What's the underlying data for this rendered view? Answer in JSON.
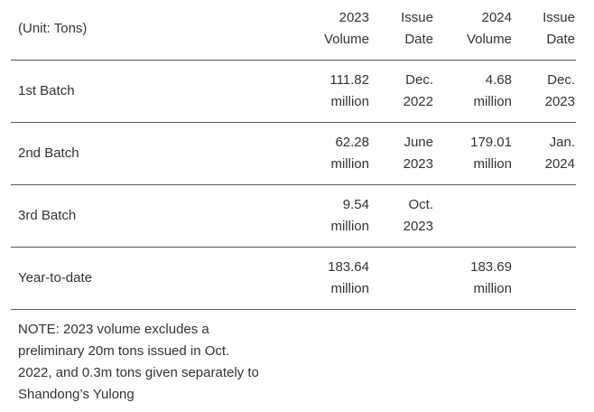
{
  "table": {
    "unit_label": "(Unit: Tons)",
    "headers": [
      [
        "2023",
        "Volume"
      ],
      [
        "Issue",
        "Date"
      ],
      [
        "2024",
        "Volume"
      ],
      [
        "Issue",
        "Date"
      ]
    ],
    "rows": [
      {
        "label": "1st Batch",
        "cells": [
          [
            "111.82",
            "million"
          ],
          [
            "Dec.",
            "2022"
          ],
          [
            "4.68",
            "million"
          ],
          [
            "Dec.",
            "2023"
          ]
        ]
      },
      {
        "label": "2nd Batch",
        "cells": [
          [
            "62.28",
            "million"
          ],
          [
            "June",
            "2023"
          ],
          [
            "179.01",
            "million"
          ],
          [
            "Jan.",
            "2024"
          ]
        ]
      },
      {
        "label": "3rd Batch",
        "cells": [
          [
            "9.54",
            "million"
          ],
          [
            "Oct.",
            "2023"
          ],
          [],
          []
        ]
      },
      {
        "label": "Year-to-date",
        "cells": [
          [
            "183.64",
            "million"
          ],
          [],
          [
            "183.69",
            "million"
          ],
          []
        ]
      }
    ]
  },
  "note": [
    "NOTE: 2023 volume excludes a",
    "preliminary 20m tons issued in Oct.",
    "2022, and 0.3m tons given separately to",
    "Shandong’s Yulong"
  ]
}
